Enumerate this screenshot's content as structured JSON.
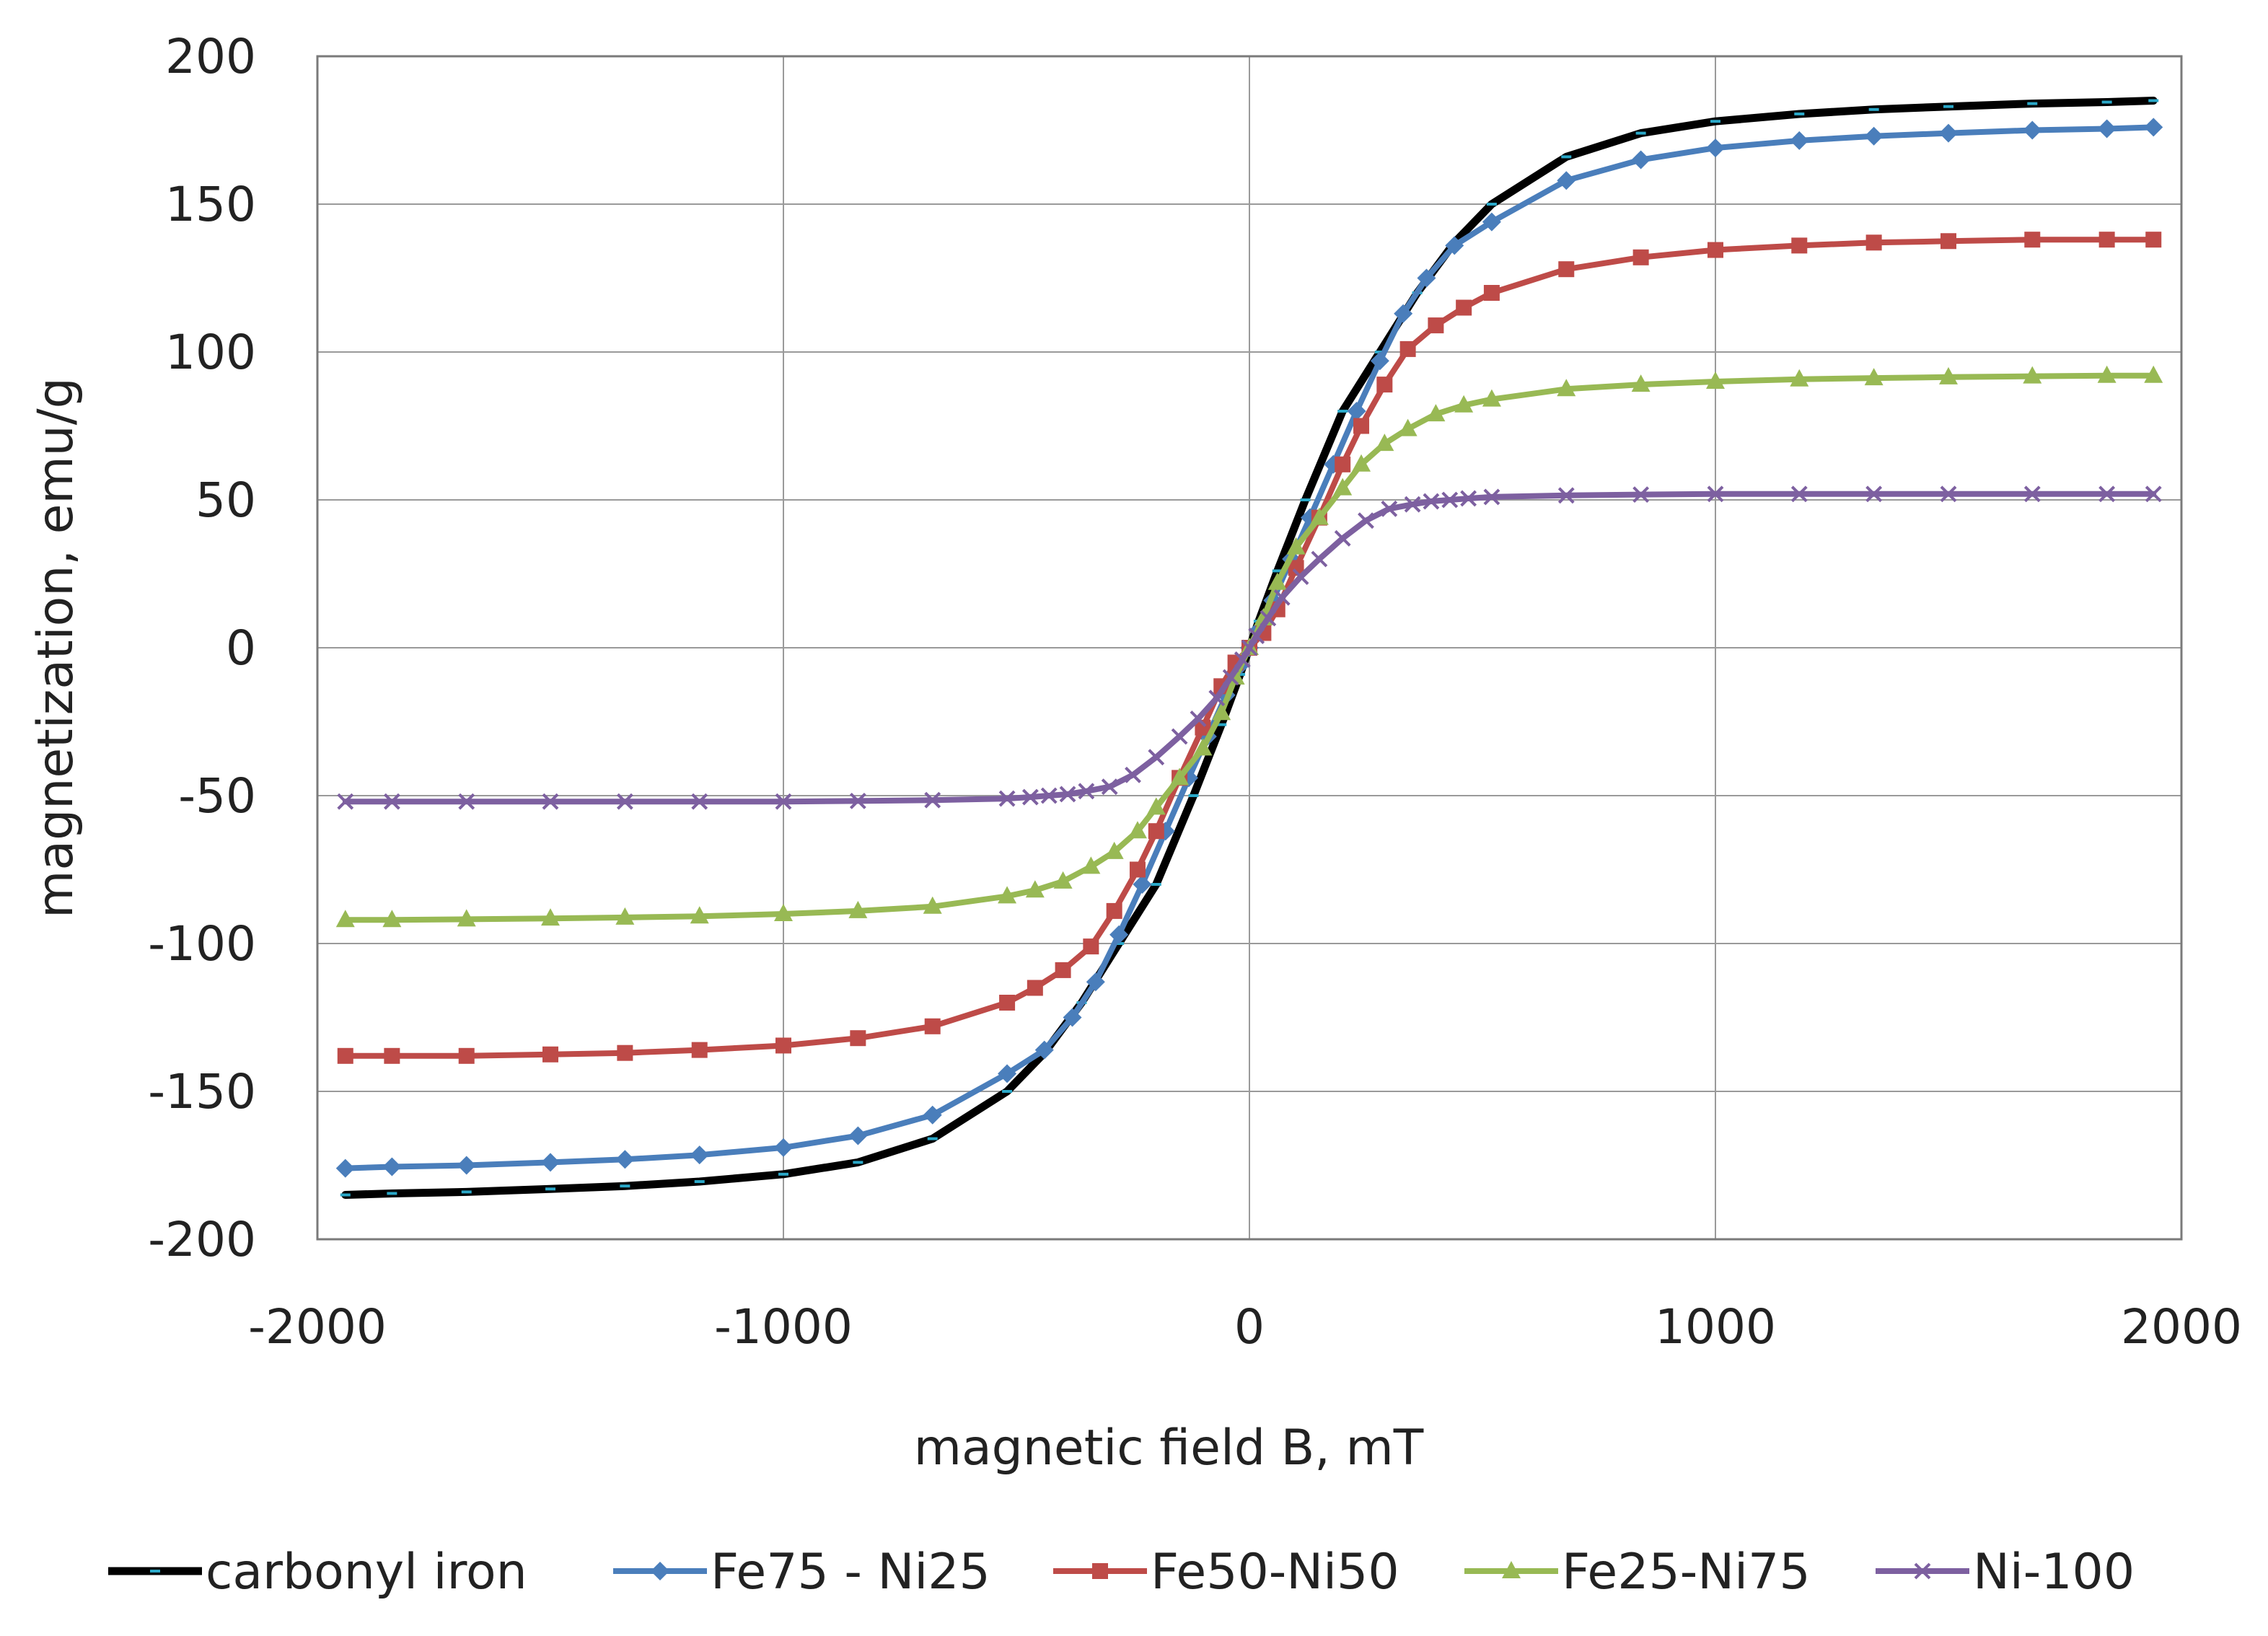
{
  "chart_data": {
    "type": "line",
    "title": "",
    "xlabel": "magnetic field B, mT",
    "ylabel": "magnetization, emu/g",
    "xlim": [
      -2000,
      2000
    ],
    "ylim": [
      -200,
      200
    ],
    "xticks": [
      -2000,
      -1000,
      0,
      1000,
      2000
    ],
    "yticks": [
      -200,
      -150,
      -100,
      -50,
      0,
      50,
      100,
      150,
      200
    ],
    "grid": true,
    "legend_position": "bottom",
    "series": [
      {
        "name": "carbonyl iron",
        "color": "#000000",
        "marker": "dash",
        "x": [
          -1940,
          -1840,
          -1680,
          -1500,
          -1340,
          -1180,
          -1000,
          -840,
          -680,
          -520,
          -440,
          -360,
          -280,
          -200,
          -120,
          -60,
          -20,
          0,
          20,
          60,
          120,
          200,
          280,
          360,
          440,
          520,
          680,
          840,
          1000,
          1180,
          1340,
          1500,
          1680,
          1840,
          1940
        ],
        "y": [
          -185,
          -184.5,
          -184,
          -183,
          -182,
          -180.5,
          -178,
          -174,
          -166,
          -150,
          -137,
          -120,
          -100,
          -80,
          -50,
          -26,
          -9,
          0,
          9,
          26,
          50,
          80,
          100,
          120,
          137,
          150,
          166,
          174,
          178,
          180.5,
          182,
          183,
          184,
          184.5,
          185
        ]
      },
      {
        "name": "Fe75 - Ni25",
        "color": "#4a7ebb",
        "marker": "diamond",
        "x": [
          -1940,
          -1840,
          -1680,
          -1500,
          -1340,
          -1180,
          -1000,
          -840,
          -680,
          -520,
          -440,
          -380,
          -330,
          -280,
          -230,
          -180,
          -130,
          -90,
          -50,
          -20,
          0,
          20,
          50,
          90,
          130,
          180,
          230,
          280,
          330,
          380,
          440,
          520,
          680,
          840,
          1000,
          1180,
          1340,
          1500,
          1680,
          1840,
          1940
        ],
        "y": [
          -176,
          -175.5,
          -175,
          -174,
          -173,
          -171.5,
          -169,
          -165,
          -158,
          -144,
          -136,
          -125,
          -113,
          -97,
          -80,
          -62,
          -44,
          -30,
          -16,
          -6,
          0,
          6,
          16,
          30,
          44,
          62,
          80,
          97,
          113,
          125,
          136,
          144,
          158,
          165,
          169,
          171.5,
          173,
          174,
          175,
          175.5,
          176
        ]
      },
      {
        "name": "Fe50-Ni50",
        "color": "#be4b48",
        "marker": "square",
        "x": [
          -1940,
          -1840,
          -1680,
          -1500,
          -1340,
          -1180,
          -1000,
          -840,
          -680,
          -520,
          -460,
          -400,
          -340,
          -290,
          -240,
          -200,
          -150,
          -100,
          -60,
          -30,
          0,
          30,
          60,
          100,
          150,
          200,
          240,
          290,
          340,
          400,
          460,
          520,
          680,
          840,
          1000,
          1180,
          1340,
          1500,
          1680,
          1840,
          1940
        ],
        "y": [
          -138,
          -138,
          -138,
          -137.5,
          -137,
          -136,
          -134.5,
          -132,
          -128,
          -120,
          -115,
          -109,
          -101,
          -89,
          -75,
          -62,
          -44,
          -27,
          -13,
          -5,
          0,
          5,
          13,
          27,
          44,
          62,
          75,
          89,
          101,
          109,
          115,
          120,
          128,
          132,
          134.5,
          136,
          137,
          137.5,
          138,
          138,
          138
        ]
      },
      {
        "name": "Fe25-Ni75",
        "color": "#98b954",
        "marker": "triangle",
        "x": [
          -1940,
          -1840,
          -1680,
          -1500,
          -1340,
          -1180,
          -1000,
          -840,
          -680,
          -520,
          -460,
          -400,
          -340,
          -290,
          -240,
          -200,
          -150,
          -100,
          -60,
          -30,
          0,
          30,
          60,
          100,
          150,
          200,
          240,
          290,
          340,
          400,
          460,
          520,
          680,
          840,
          1000,
          1180,
          1340,
          1500,
          1680,
          1840,
          1940
        ],
        "y": [
          -92,
          -92,
          -91.8,
          -91.5,
          -91.2,
          -90.8,
          -90,
          -89,
          -87.5,
          -84,
          -82,
          -79,
          -74,
          -69,
          -62,
          -54,
          -44,
          -34,
          -22,
          -10,
          0,
          10,
          22,
          34,
          44,
          54,
          62,
          69,
          74,
          79,
          82,
          84,
          87.5,
          89,
          90,
          90.8,
          91.2,
          91.5,
          91.8,
          92,
          92
        ]
      },
      {
        "name": "Ni-100",
        "color": "#7d60a0",
        "marker": "x",
        "x": [
          -1940,
          -1840,
          -1680,
          -1500,
          -1340,
          -1180,
          -1000,
          -840,
          -680,
          -520,
          -470,
          -430,
          -390,
          -350,
          -300,
          -250,
          -200,
          -150,
          -110,
          -70,
          -40,
          -15,
          0,
          15,
          40,
          70,
          110,
          150,
          200,
          250,
          300,
          350,
          390,
          430,
          470,
          520,
          680,
          840,
          1000,
          1180,
          1340,
          1500,
          1680,
          1840,
          1940
        ],
        "y": [
          -52,
          -52,
          -52,
          -52,
          -52,
          -52,
          -52,
          -51.8,
          -51.5,
          -51,
          -50.5,
          -50,
          -49.5,
          -48.5,
          -47,
          -43,
          -37,
          -30,
          -24,
          -17,
          -10,
          -4,
          0,
          4,
          10,
          17,
          24,
          30,
          37,
          43,
          47,
          48.5,
          49.5,
          50,
          50.5,
          51,
          51.5,
          51.8,
          52,
          52,
          52,
          52,
          52,
          52,
          52
        ]
      }
    ]
  }
}
